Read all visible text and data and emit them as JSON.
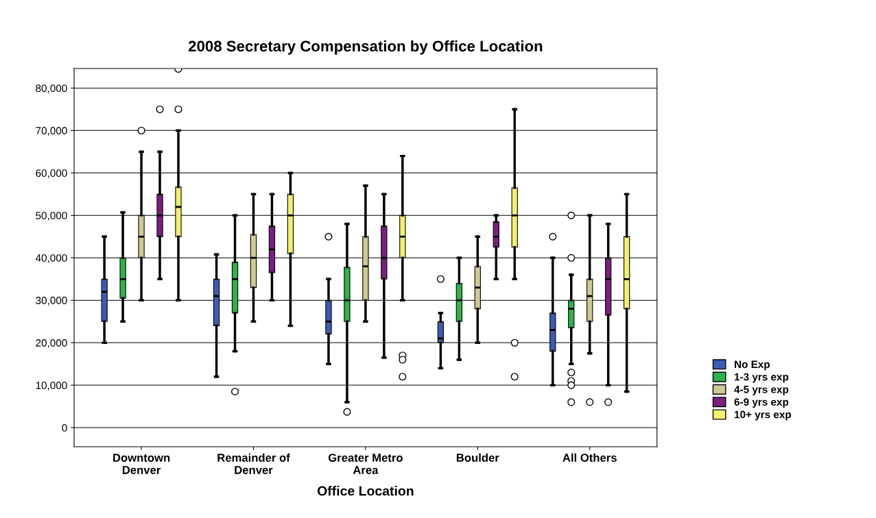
{
  "chart_data": {
    "type": "box",
    "title": "2008 Secretary Compensation by Office Location",
    "xlabel": "Office Location",
    "categories": [
      "Downtown\nDenver",
      "Remainder of\nDenver",
      "Greater Metro\nArea",
      "Boulder",
      "All Others"
    ],
    "ylim": [
      -4500,
      84600
    ],
    "yticks": [
      0,
      {
        "value": 10000,
        "label": "10,000"
      },
      {
        "value": 20000,
        "label": "20,000"
      },
      {
        "value": 30000,
        "label": "30,000"
      },
      {
        "value": 40000,
        "label": "40,000"
      },
      {
        "value": 50000,
        "label": "50,000"
      },
      {
        "value": 60000,
        "label": "60,000"
      },
      {
        "value": 70000,
        "label": "70,000"
      },
      {
        "value": 80000,
        "label": "80,000"
      }
    ],
    "grid": "y",
    "legend": "right",
    "series": [
      {
        "name": "No Exp",
        "color": "#3d5ab5",
        "boxes": [
          {
            "low": 20000,
            "q1": 25000,
            "median": 32000,
            "q3": 35000,
            "high": 45000
          },
          {
            "low": 12000,
            "q1": 24000,
            "median": 31000,
            "q3": 35000,
            "high": 40800
          },
          {
            "low": 15000,
            "q1": 22000,
            "median": 25000,
            "q3": 30000,
            "high": 35000,
            "outliers": [
              45000
            ]
          },
          {
            "low": 14000,
            "q1": 20000,
            "median": 21000,
            "q3": 25000,
            "high": 27000,
            "outliers": [
              35000
            ]
          },
          {
            "low": 10000,
            "q1": 18000,
            "median": 23000,
            "q3": 27000,
            "high": 40000,
            "outliers": [
              45000
            ]
          }
        ]
      },
      {
        "name": "1-3 yrs exp",
        "color": "#2db34a",
        "boxes": [
          {
            "low": 25000,
            "q1": 30500,
            "median": 35000,
            "q3": 40000,
            "high": 50700
          },
          {
            "low": 18000,
            "q1": 27000,
            "median": 35000,
            "q3": 39000,
            "high": 50000,
            "outliers": [
              8500
            ]
          },
          {
            "low": 6000,
            "q1": 25000,
            "median": 30000,
            "q3": 37800,
            "high": 48000,
            "outliers": [
              3700
            ]
          },
          {
            "low": 16000,
            "q1": 25000,
            "median": 30000,
            "q3": 34000,
            "high": 40000
          },
          {
            "low": 15000,
            "q1": 23500,
            "median": 28000,
            "q3": 30000,
            "high": 36000,
            "outliers": [
              50000,
              40000,
              13000,
              11000,
              10000,
              6000
            ]
          }
        ]
      },
      {
        "name": "4-5 yrs exp",
        "color": "#d2c894",
        "boxes": [
          {
            "low": 30000,
            "q1": 40000,
            "median": 45000,
            "q3": 50000,
            "high": 65000,
            "outliers": [
              70000
            ]
          },
          {
            "low": 25000,
            "q1": 33000,
            "median": 40000,
            "q3": 45500,
            "high": 55000
          },
          {
            "low": 25000,
            "q1": 30000,
            "median": 38000,
            "q3": 45000,
            "high": 57000
          },
          {
            "low": 20000,
            "q1": 28000,
            "median": 33000,
            "q3": 38000,
            "high": 45000
          },
          {
            "low": 17500,
            "q1": 25000,
            "median": 31000,
            "q3": 35000,
            "high": 50000,
            "outliers": [
              6000
            ]
          }
        ]
      },
      {
        "name": "6-9 yrs exp",
        "color": "#7a1f7f",
        "boxes": [
          {
            "low": 35000,
            "q1": 45000,
            "median": 50000,
            "q3": 55000,
            "high": 65000,
            "outliers": [
              75000
            ]
          },
          {
            "low": 30000,
            "q1": 36500,
            "median": 42000,
            "q3": 47500,
            "high": 55000
          },
          {
            "low": 16500,
            "q1": 35000,
            "median": 40000,
            "q3": 47500,
            "high": 55000
          },
          {
            "low": 35000,
            "q1": 42500,
            "median": 45000,
            "q3": 48500,
            "high": 50000
          },
          {
            "low": 10000,
            "q1": 26500,
            "median": 35000,
            "q3": 40000,
            "high": 48000,
            "outliers": [
              6000
            ]
          }
        ]
      },
      {
        "name": "10+ yrs exp",
        "color": "#f2ef6e",
        "boxes": [
          {
            "low": 30000,
            "q1": 45000,
            "median": 52000,
            "q3": 56700,
            "high": 70000,
            "outliers": [
              75000,
              84500
            ]
          },
          {
            "low": 24000,
            "q1": 41000,
            "median": 50000,
            "q3": 55000,
            "high": 60000
          },
          {
            "low": 30000,
            "q1": 40000,
            "median": 45000,
            "q3": 50000,
            "high": 64000,
            "outliers": [
              17000,
              16000,
              12000
            ]
          },
          {
            "low": 35000,
            "q1": 42500,
            "median": 50000,
            "q3": 56500,
            "high": 75000,
            "outliers": [
              20000,
              12000
            ]
          },
          {
            "low": 8500,
            "q1": 28000,
            "median": 35000,
            "q3": 45000,
            "high": 55000
          }
        ]
      }
    ]
  }
}
